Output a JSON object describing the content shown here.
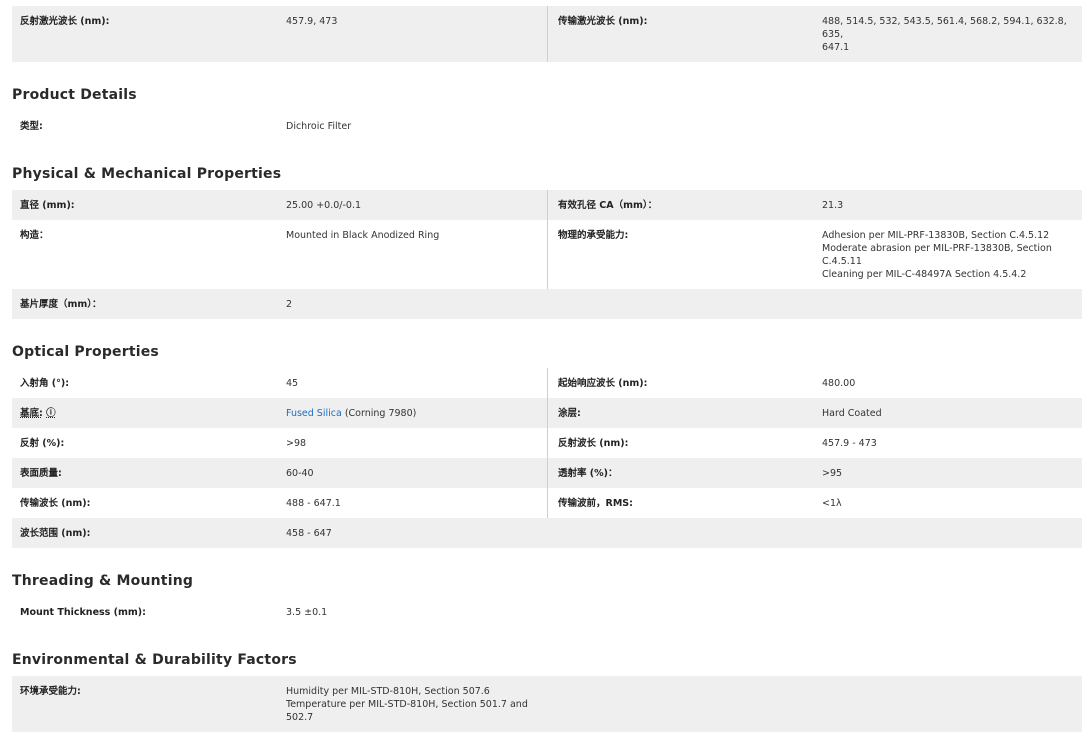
{
  "sections": [
    {
      "heading": "",
      "rows": [
        {
          "label": "反射激光波长 (nm):",
          "value": [
            "457.9, 473"
          ],
          "right_label": "传输激光波长 (nm):",
          "right_value": [
            "488, 514.5, 532, 543.5, 561.4, 568.2, 594.1, 632.8, 635,",
            "647.1"
          ]
        }
      ]
    },
    {
      "heading": "Product Details",
      "rows": [
        {
          "label": "类型:",
          "value": [
            "Dichroic Filter"
          ]
        }
      ]
    },
    {
      "heading": "Physical & Mechanical Properties",
      "rows": [
        {
          "label": "直径 (mm):",
          "value": [
            "25.00 +0.0/-0.1"
          ],
          "right_label": "有效孔径 CA（mm）：",
          "right_value": [
            "21.3"
          ]
        },
        {
          "label": "构造：",
          "value": [
            "Mounted in Black Anodized Ring"
          ],
          "right_label": "物理的承受能力:",
          "right_value": [
            "Adhesion per MIL-PRF-13830B, Section C.4.5.12",
            "Moderate abrasion per MIL-PRF-13830B, Section",
            "C.4.5.11",
            "Cleaning per MIL-C-48497A Section 4.5.4.2"
          ]
        },
        {
          "label": "基片厚度（mm）：",
          "value": [
            "2"
          ]
        }
      ]
    },
    {
      "heading": "Optical Properties",
      "rows": [
        {
          "label": "入射角 (°):",
          "value": [
            "45"
          ],
          "right_label": "起始响应波长 (nm):",
          "right_value": [
            "480.00"
          ]
        },
        {
          "label": "基底:",
          "info_icon": "info-circle-icon",
          "info_glyph": "ⓘ",
          "value_link": "Fused Silica",
          "value": [
            " (Corning 7980)"
          ],
          "right_label": "涂层:",
          "right_value": [
            "Hard Coated"
          ]
        },
        {
          "label": "反射 (%):",
          "value": [
            ">98"
          ],
          "right_label": "反射波长 (nm):",
          "right_value": [
            "457.9 - 473"
          ]
        },
        {
          "label": "表面质量:",
          "value": [
            "60-40"
          ],
          "right_label": "透射率 (%)：",
          "right_value": [
            ">95"
          ]
        },
        {
          "label": "传输波长 (nm):",
          "value": [
            "488 - 647.1"
          ],
          "right_label": "传输波前，RMS:",
          "right_value": [
            "<1λ"
          ]
        },
        {
          "label": "波长范围 (nm):",
          "value": [
            "458 - 647"
          ]
        }
      ]
    },
    {
      "heading": "Threading & Mounting",
      "rows": [
        {
          "label": "Mount Thickness (mm):",
          "value": [
            "3.5 ±0.1"
          ]
        }
      ]
    },
    {
      "heading": "Environmental & Durability Factors",
      "rows": [
        {
          "label": "环境承受能力:",
          "value": [
            "Humidity per MIL-STD-810H, Section 507.6",
            "Temperature per MIL-STD-810H, Section 501.7 and",
            "502.7"
          ]
        }
      ]
    }
  ],
  "colors": {
    "row_shade": "#efefef",
    "link": "#1a6fc1",
    "divider": "#cfcfcf"
  }
}
